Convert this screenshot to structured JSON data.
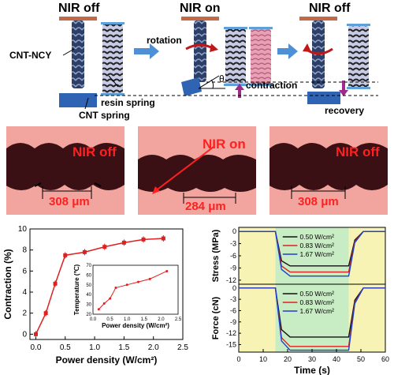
{
  "top": {
    "labels": {
      "nir_off_1": "NIR off",
      "nir_on": "NIR on",
      "nir_off_2": "NIR off",
      "cnt_ncy": "CNT-NCY",
      "resin_spring": "resin spring",
      "cnt_spring": "CNT spring",
      "rotation": "rotation",
      "theta": "θ",
      "contraction": "contraction",
      "recovery": "recovery"
    }
  },
  "micrographs": {
    "panels": [
      {
        "label": "NIR off",
        "measure": "308 μm"
      },
      {
        "label": "NIR on",
        "measure": "284 μm"
      },
      {
        "label": "NIR off",
        "measure": "308 μm"
      }
    ]
  },
  "chart_data": [
    {
      "type": "line",
      "xlabel": "Power density (W/cm²)",
      "ylabel": "Contraction (%)",
      "xlim": [
        -0.1,
        2.5
      ],
      "ylim": [
        -0.5,
        10
      ],
      "xticks": [
        "0.0",
        "0.5",
        "1.0",
        "1.5",
        "2.0",
        "2.5"
      ],
      "yticks": [
        "0",
        "2",
        "4",
        "6",
        "8",
        "10"
      ],
      "x": [
        0.0,
        0.17,
        0.33,
        0.5,
        0.83,
        1.17,
        1.5,
        1.83,
        2.17
      ],
      "y": [
        0.0,
        2.0,
        4.8,
        7.5,
        7.8,
        8.3,
        8.7,
        9.0,
        9.1
      ],
      "color": "#e02020",
      "inset": {
        "type": "line",
        "xlabel": "Power density (W/cm²)",
        "ylabel": "Temperature (℃)",
        "xlim": [
          0,
          2.5
        ],
        "ylim": [
          20,
          70
        ],
        "xticks": [
          "0.0",
          "0.5",
          "1.0",
          "1.5",
          "2.0",
          "2.5"
        ],
        "yticks": [
          "20",
          "30",
          "40",
          "50",
          "60",
          "70"
        ],
        "x": [
          0.17,
          0.33,
          0.5,
          0.67,
          1.0,
          1.33,
          1.67,
          2.17
        ],
        "y": [
          25,
          31,
          36,
          47,
          50,
          53,
          56,
          64
        ]
      }
    },
    {
      "type": "line",
      "ylabel": "Stress (MPa)",
      "xlim": [
        0,
        60
      ],
      "ylim": [
        -13,
        1
      ],
      "yticks": [
        "0",
        "-3",
        "-6",
        "-9",
        "-12"
      ],
      "shaded_x": [
        15,
        45
      ],
      "series": [
        {
          "name": "0.50 W/cm²",
          "color": "#111111",
          "plateau": -8.5
        },
        {
          "name": "0.83 W/cm²",
          "color": "#e02020",
          "plateau": -10.0
        },
        {
          "name": "1.67 W/cm²",
          "color": "#2040d0",
          "plateau": -11.0
        }
      ]
    },
    {
      "type": "line",
      "xlabel": "Time (s)",
      "ylabel": "Force (cN)",
      "xlim": [
        0,
        60
      ],
      "ylim": [
        -17,
        1
      ],
      "xticks": [
        "0",
        "10",
        "20",
        "30",
        "40",
        "50",
        "60"
      ],
      "yticks": [
        "0",
        "-3",
        "-6",
        "-9",
        "-12",
        "-15"
      ],
      "shaded_x": [
        15,
        45
      ],
      "series": [
        {
          "name": "0.50 W/cm²",
          "color": "#111111",
          "plateau": -13.0
        },
        {
          "name": "0.83 W/cm²",
          "color": "#e02020",
          "plateau": -15.5
        },
        {
          "name": "1.67 W/cm²",
          "color": "#2040d0",
          "plateau": -16.5
        }
      ]
    }
  ]
}
